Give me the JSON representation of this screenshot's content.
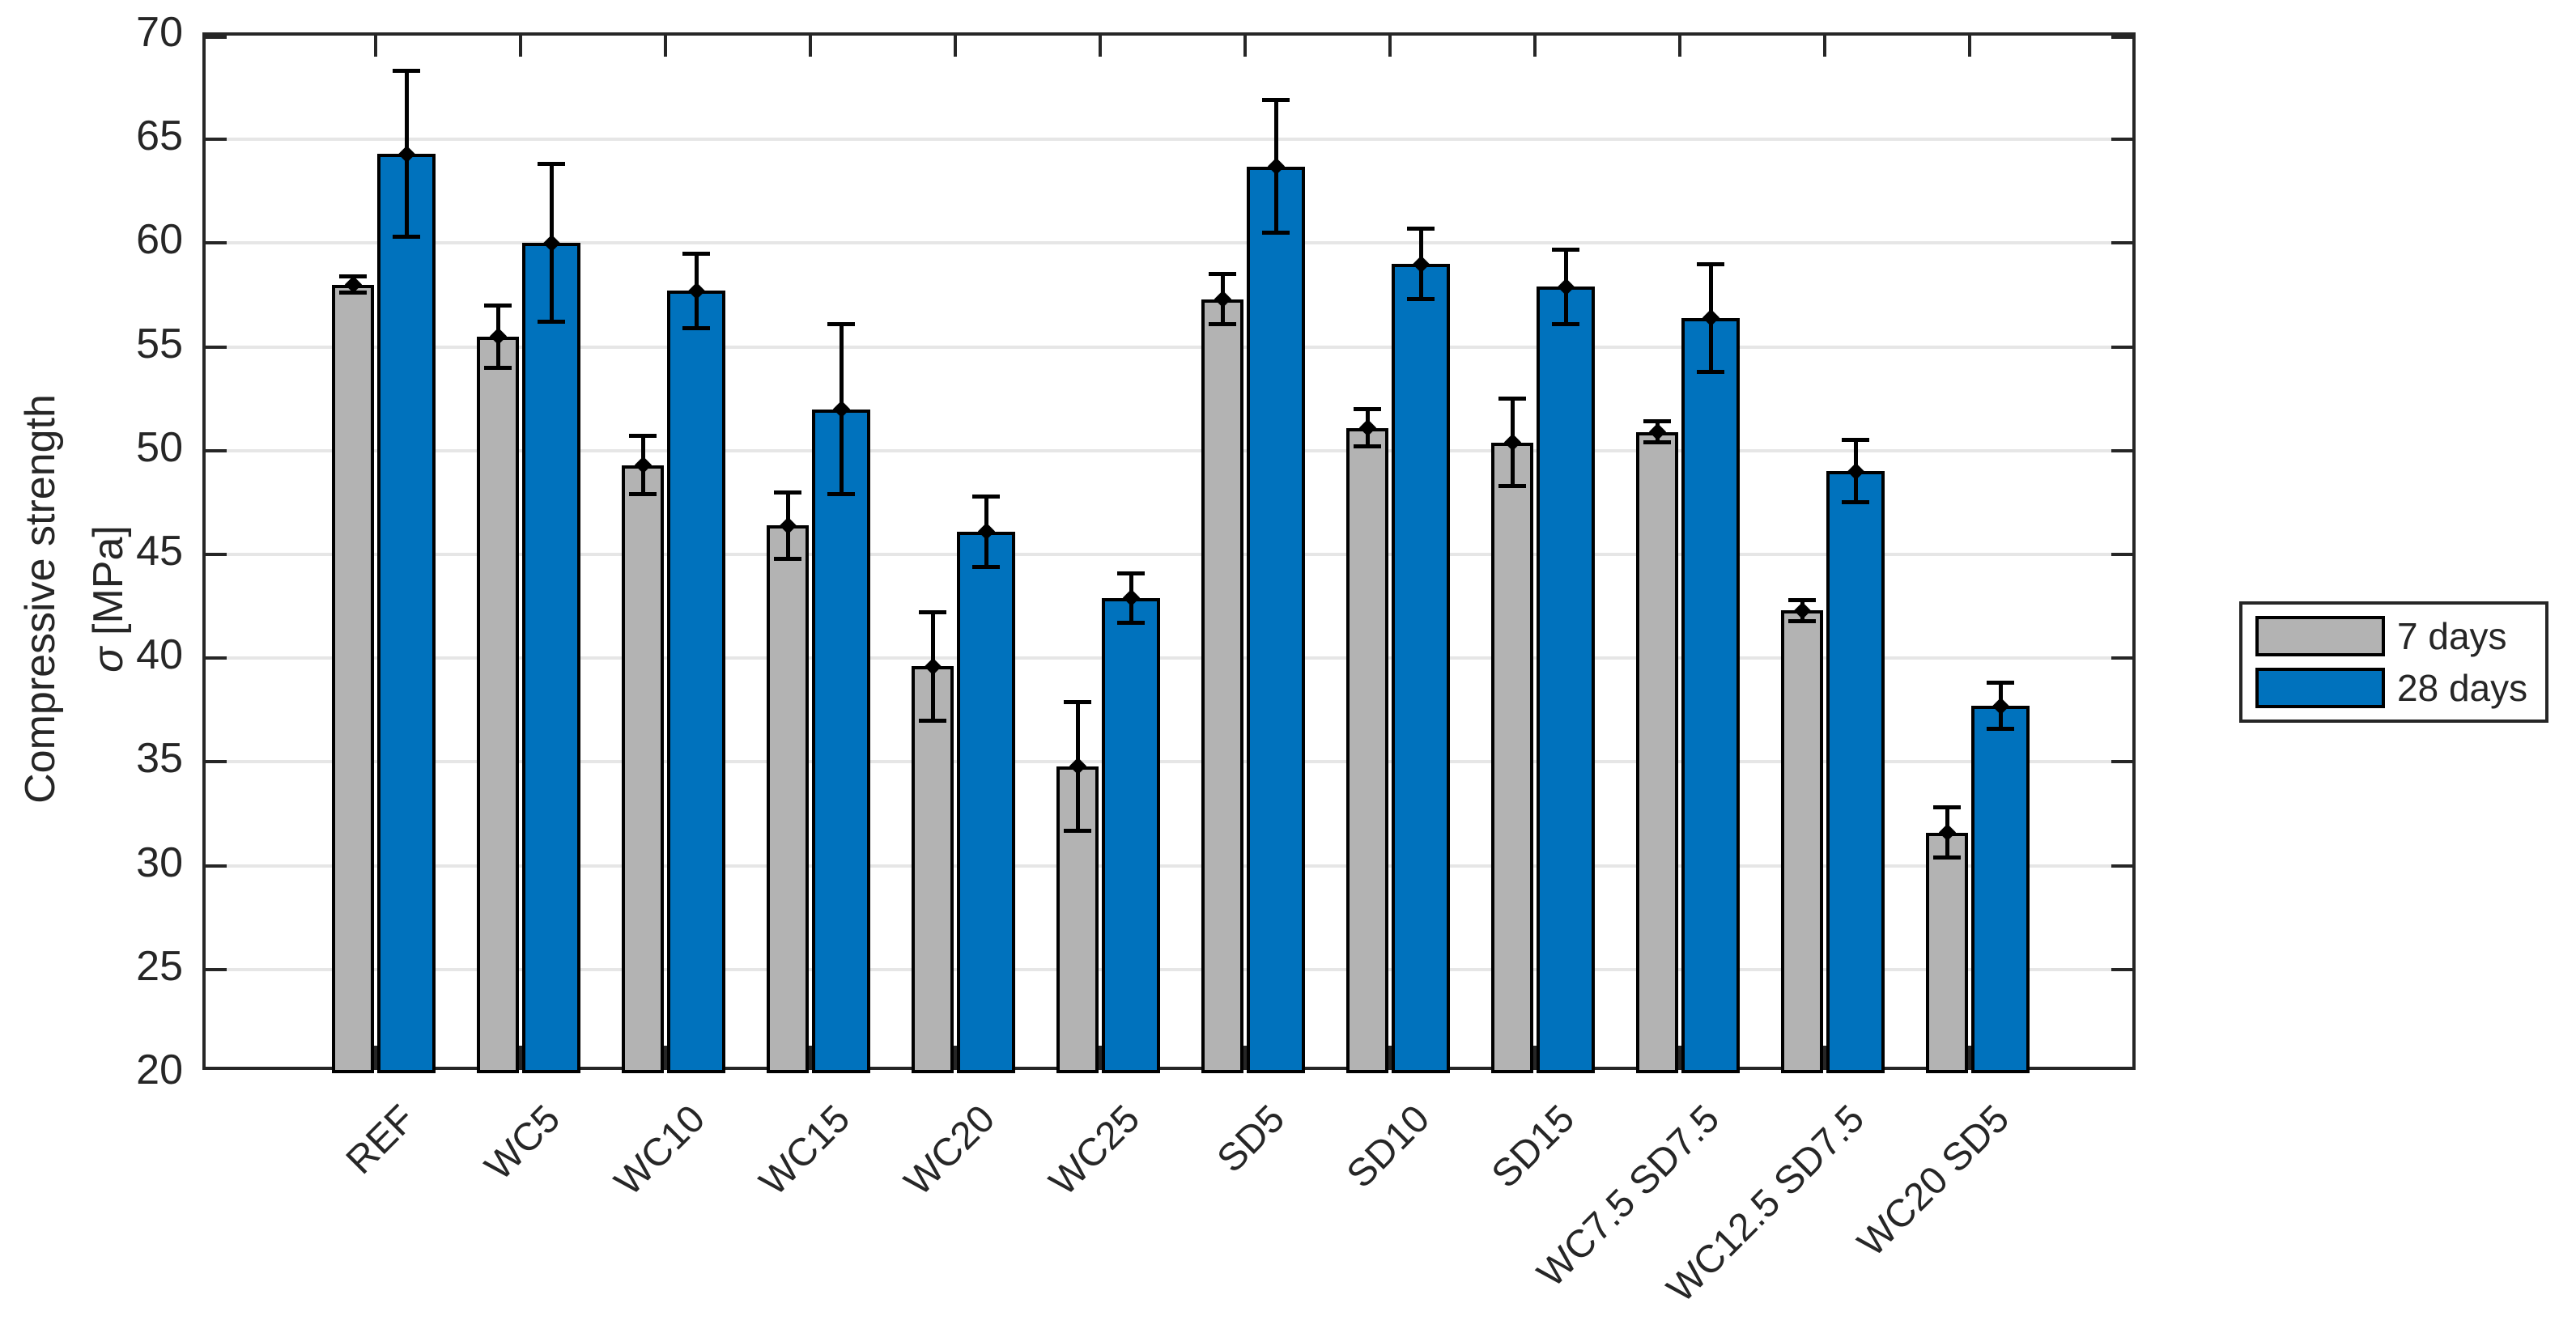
{
  "chart_data": {
    "type": "bar",
    "title": "",
    "categories": [
      "REF",
      "WC5",
      "WC10",
      "WC15",
      "WC20",
      "WC25",
      "SD5",
      "SD10",
      "SD15",
      "WC7.5 SD7.5",
      "WC12.5 SD7.5",
      "WC20 SD5"
    ],
    "series": [
      {
        "name": "7 days",
        "color": "#B3B3B3",
        "values": [
          58.0,
          55.5,
          49.3,
          46.4,
          39.6,
          34.8,
          57.3,
          51.1,
          50.4,
          50.9,
          42.3,
          31.6
        ],
        "errors": [
          0.4,
          1.5,
          1.4,
          1.6,
          2.6,
          3.1,
          1.2,
          0.9,
          2.1,
          0.5,
          0.5,
          1.2
        ]
      },
      {
        "name": "28 days",
        "color": "#0072BD",
        "values": [
          64.3,
          60.0,
          57.7,
          52.0,
          46.1,
          42.9,
          63.7,
          59.0,
          57.9,
          56.4,
          49.0,
          37.7
        ],
        "errors": [
          4.0,
          3.8,
          1.8,
          4.1,
          1.7,
          1.2,
          3.2,
          1.7,
          1.8,
          2.6,
          1.5,
          1.1
        ]
      }
    ],
    "ylabel_line1": "Compressive strength",
    "ylabel_sigma": "σ",
    "ylabel_unit": "[MPa]",
    "xlabel": "",
    "ylim": [
      20,
      70
    ],
    "yticks": [
      20,
      25,
      30,
      35,
      40,
      45,
      50,
      55,
      60,
      65,
      70
    ],
    "grid": "horizontal",
    "error_bars": true,
    "legend_position": "right-outside",
    "colors": {
      "bar_edge": "#000000",
      "error_bar": "#000000",
      "axis": "#262626",
      "gridline": "#E6E6E6",
      "background": "#FFFFFF"
    }
  }
}
